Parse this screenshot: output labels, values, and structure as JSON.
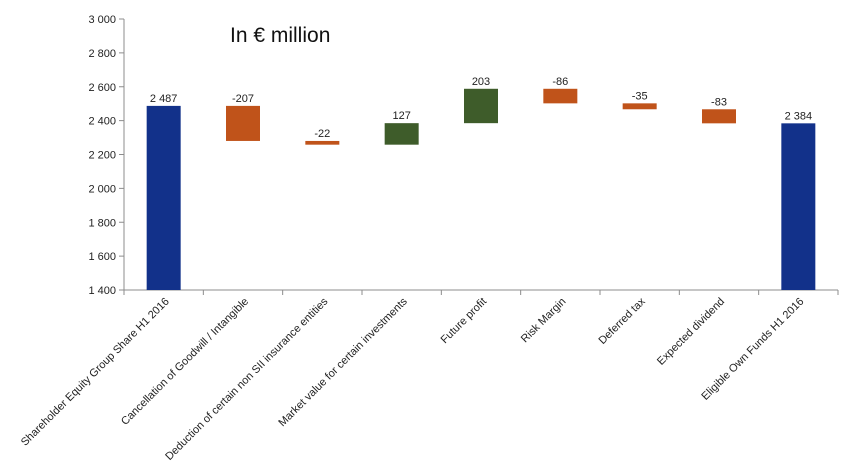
{
  "chart_data": {
    "type": "bar",
    "subtype": "waterfall",
    "title": "In € million",
    "xlabel": "",
    "ylabel": "",
    "ylim": [
      1400,
      3000
    ],
    "yticks": [
      1400,
      1600,
      1800,
      2000,
      2200,
      2400,
      2600,
      2800,
      3000
    ],
    "ytick_labels": [
      "1 400",
      "1 600",
      "1 800",
      "2 000",
      "2 200",
      "2 400",
      "2 600",
      "2 800",
      "3 000"
    ],
    "grid": false,
    "legend": "none",
    "categories": [
      "Shareholder Equity Group Share H1 2016",
      "Cancellation of Goodwill / Intangible",
      "Deduction of certain non SII insurance entities",
      "Market value for certain investments",
      "Future profit",
      "Risk Margin",
      "Deferred tax",
      "Expected dividend",
      "Eligible Own Funds H1 2016"
    ],
    "values": [
      2487,
      -207,
      -22,
      127,
      203,
      -86,
      -35,
      -83,
      2384
    ],
    "value_labels": [
      "2 487",
      "-207",
      "-22",
      "127",
      "203",
      "-86",
      "-35",
      "-83",
      "2 384"
    ],
    "kinds": [
      "total",
      "delta",
      "delta",
      "delta",
      "delta",
      "delta",
      "delta",
      "delta",
      "total"
    ],
    "colors": {
      "total": "#12318a",
      "increase": "#3e5c2a",
      "decrease": "#c0531a"
    }
  }
}
